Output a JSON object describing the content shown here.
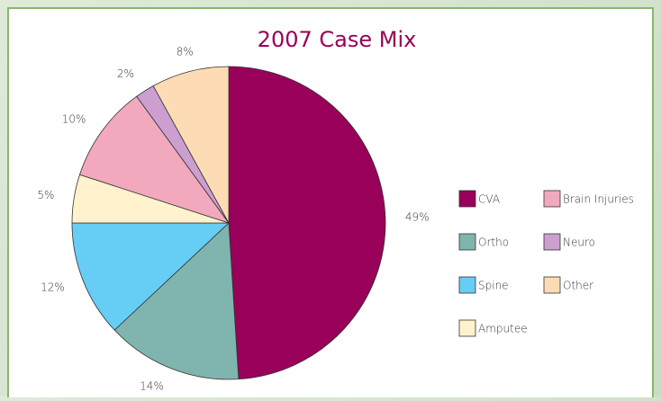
{
  "chart_data": {
    "type": "pie",
    "title": "2007 Case Mix",
    "categories": [
      "CVA",
      "Ortho",
      "Spine",
      "Amputee",
      "Brain Injuries",
      "Neuro",
      "Other"
    ],
    "values": [
      49,
      14,
      12,
      5,
      10,
      2,
      8
    ],
    "value_labels": [
      "49%",
      "14%",
      "12%",
      "5%",
      "10%",
      "2%",
      "8%"
    ],
    "colors": [
      "#99005a",
      "#7fb5ae",
      "#66cdf5",
      "#fff2cc",
      "#f2a9bd",
      "#cc9fd0",
      "#fddcb5"
    ]
  }
}
